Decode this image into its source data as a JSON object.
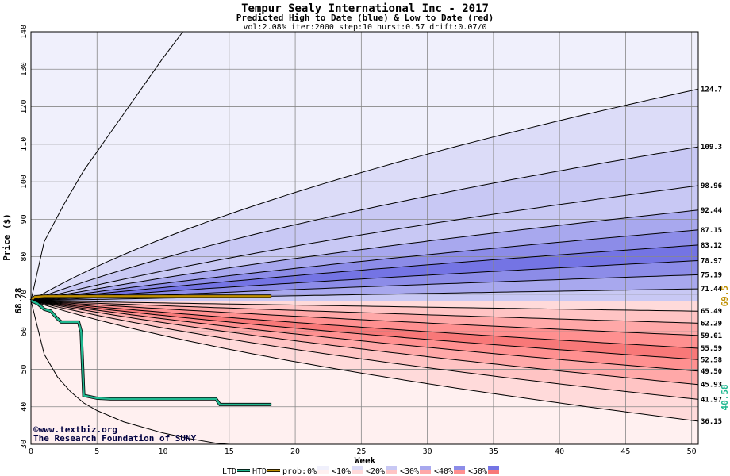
{
  "chart_data": {
    "type": "area",
    "title": "Tempur Sealy International Inc - 2017",
    "subtitle": "Predicted High to Date (blue) &  Low to Date (red)",
    "params": "vol:2.08% iter:2000 step:10 hurst:0.57 drift:0.07/0",
    "xlabel": "Week",
    "ylabel": "Price ($)",
    "xlim": [
      0,
      50.5
    ],
    "ylim": [
      30,
      140
    ],
    "xticks": [
      0,
      5,
      10,
      15,
      20,
      25,
      30,
      35,
      40,
      45,
      50
    ],
    "yticks": [
      30,
      40,
      50,
      60,
      70,
      80,
      90,
      100,
      110,
      120,
      130,
      140
    ],
    "start_price": 68.28,
    "start_price_label": "68.28",
    "grid": true,
    "colors": {
      "high_0": "#f0f0fc",
      "high_10": "#dcdcf8",
      "high_20": "#c8c8f4",
      "high_30": "#a8a8ee",
      "high_40": "#8c8ce8",
      "high_50": "#7474e4",
      "low_0": "#fff0f0",
      "low_10": "#ffdada",
      "low_20": "#ffc4c4",
      "low_30": "#ffa8a8",
      "low_40": "#ff9090",
      "low_50": "#f87878",
      "ltd": "#20b890",
      "htd": "#c09000"
    },
    "high_bands": [
      {
        "label": "124.7",
        "end": 124.7,
        "a": 0.127
      },
      {
        "label": "109.3",
        "end": 109.3,
        "a": 0.084
      },
      {
        "label": "98.96",
        "end": 98.96,
        "a": 0.053
      },
      {
        "label": "92.44",
        "end": 92.44,
        "a": 0.043
      },
      {
        "label": "87.15",
        "end": 87.15,
        "a": 0.034
      },
      {
        "label": "83.12",
        "end": 83.12,
        "a": 0.028
      },
      {
        "label": "78.97",
        "end": 78.97,
        "a": 0.022
      },
      {
        "label": "75.19",
        "end": 75.19,
        "a": 0.016
      },
      {
        "label": "71.44",
        "end": 71.44,
        "a": 0.009
      }
    ],
    "low_bands": [
      {
        "label": "65.49",
        "end": 65.49,
        "a": 0.009
      },
      {
        "label": "62.29",
        "end": 62.29,
        "a": 0.015
      },
      {
        "label": "59.01",
        "end": 59.01,
        "a": 0.025
      },
      {
        "label": "55.59",
        "end": 55.59,
        "a": 0.034
      },
      {
        "label": "52.58",
        "end": 52.58,
        "a": 0.043
      },
      {
        "label": "49.50",
        "end": 49.5,
        "a": 0.05
      },
      {
        "label": "45.93",
        "end": 45.93,
        "a": 0.058
      },
      {
        "label": "41.97",
        "end": 41.97,
        "a": 0.082
      },
      {
        "label": "36.15",
        "end": 36.15,
        "a": 0.112
      }
    ],
    "outer_high_curve": {
      "points": [
        [
          0,
          68.3
        ],
        [
          1,
          84
        ],
        [
          2.5,
          94
        ],
        [
          4,
          103
        ],
        [
          5,
          108
        ],
        [
          6,
          113
        ],
        [
          7,
          118
        ],
        [
          8,
          123
        ],
        [
          9,
          128
        ],
        [
          10,
          133
        ],
        [
          11.5,
          140
        ]
      ]
    },
    "outer_low_curve": {
      "points": [
        [
          0,
          68.3
        ],
        [
          1,
          54
        ],
        [
          2,
          48
        ],
        [
          3,
          44
        ],
        [
          4,
          41
        ],
        [
          5,
          39
        ],
        [
          6,
          37.5
        ],
        [
          7,
          36
        ],
        [
          8,
          35
        ],
        [
          10,
          33
        ],
        [
          12,
          31.5
        ],
        [
          14,
          30.3
        ],
        [
          15,
          30
        ]
      ]
    },
    "htd_series": {
      "name": "HTD",
      "value_label": "69.5",
      "points": [
        [
          0,
          68.3
        ],
        [
          0.3,
          69.3
        ],
        [
          1,
          69.5
        ],
        [
          18.2,
          69.5
        ]
      ]
    },
    "ltd_series": {
      "name": "LTD",
      "value_label": "40.58",
      "points": [
        [
          0,
          68.3
        ],
        [
          0.5,
          67.5
        ],
        [
          1,
          66
        ],
        [
          1.5,
          65.5
        ],
        [
          2,
          63.5
        ],
        [
          2.3,
          62.6
        ],
        [
          3.6,
          62.6
        ],
        [
          3.8,
          60
        ],
        [
          4,
          43
        ],
        [
          5,
          42.3
        ],
        [
          6,
          42.1
        ],
        [
          14,
          42.1
        ],
        [
          14.3,
          40.6
        ],
        [
          18.2,
          40.6
        ]
      ]
    },
    "legend": {
      "ltd": "LTD",
      "htd": "HTD",
      "prob_label": "prob:",
      "items": [
        "0%",
        "<10%",
        "<20%",
        "<30%",
        "<40%",
        "<50%"
      ]
    },
    "credit": {
      "copyright": "©www.textbiz.org",
      "org": "The Research Foundation of SUNY"
    }
  }
}
